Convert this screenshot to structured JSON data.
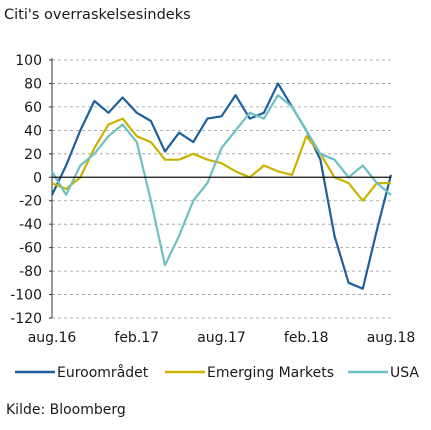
{
  "chart_data": {
    "type": "line",
    "title": "Citi's overraskelsesindeks",
    "source": "Kilde: Bloomberg",
    "xlabel": "",
    "ylabel": "",
    "ylim": [
      -120,
      100
    ],
    "y_ticks": [
      100,
      80,
      60,
      40,
      20,
      0,
      -20,
      -40,
      -60,
      -80,
      -100,
      -120
    ],
    "x_ticks": [
      "aug.16",
      "feb.17",
      "aug.17",
      "feb.18",
      "aug.18"
    ],
    "xlim": [
      "2016-08",
      "2018-08"
    ],
    "grid": "horizontal dashed",
    "legend_position": "bottom",
    "series": [
      {
        "name": "Euroområdet",
        "color": "#1f5f9e",
        "x": [
          "2016-08",
          "2016-09",
          "2016-10",
          "2016-11",
          "2016-12",
          "2017-01",
          "2017-02",
          "2017-03",
          "2017-04",
          "2017-05",
          "2017-06",
          "2017-07",
          "2017-08",
          "2017-09",
          "2017-10",
          "2017-11",
          "2017-12",
          "2018-01",
          "2018-02",
          "2018-03",
          "2018-04",
          "2018-05",
          "2018-06",
          "2018-07",
          "2018-08"
        ],
        "values": [
          -15,
          10,
          40,
          65,
          55,
          68,
          55,
          48,
          22,
          38,
          30,
          50,
          52,
          70,
          50,
          55,
          80,
          60,
          40,
          15,
          -50,
          -90,
          -95,
          -45,
          2
        ]
      },
      {
        "name": "Emerging Markets",
        "color": "#c9b300",
        "x": [
          "2016-08",
          "2016-09",
          "2016-10",
          "2016-11",
          "2016-12",
          "2017-01",
          "2017-02",
          "2017-03",
          "2017-04",
          "2017-05",
          "2017-06",
          "2017-07",
          "2017-08",
          "2017-09",
          "2017-10",
          "2017-11",
          "2017-12",
          "2018-01",
          "2018-02",
          "2018-03",
          "2018-04",
          "2018-05",
          "2018-06",
          "2018-07",
          "2018-08"
        ],
        "values": [
          -5,
          -10,
          0,
          25,
          45,
          50,
          35,
          30,
          15,
          15,
          20,
          15,
          12,
          5,
          0,
          10,
          5,
          2,
          35,
          20,
          0,
          -5,
          -20,
          -5,
          -5
        ]
      },
      {
        "name": "USA",
        "color": "#6fc0c4",
        "x": [
          "2016-08",
          "2016-09",
          "2016-10",
          "2016-11",
          "2016-12",
          "2017-01",
          "2017-02",
          "2017-03",
          "2017-04",
          "2017-05",
          "2017-06",
          "2017-07",
          "2017-08",
          "2017-09",
          "2017-10",
          "2017-11",
          "2017-12",
          "2018-01",
          "2018-02",
          "2018-03",
          "2018-04",
          "2018-05",
          "2018-06",
          "2018-07",
          "2018-08"
        ],
        "values": [
          5,
          -15,
          10,
          20,
          35,
          45,
          30,
          -20,
          -75,
          -50,
          -20,
          -5,
          25,
          40,
          55,
          50,
          70,
          60,
          40,
          20,
          15,
          0,
          10,
          -5,
          -15
        ]
      }
    ]
  }
}
